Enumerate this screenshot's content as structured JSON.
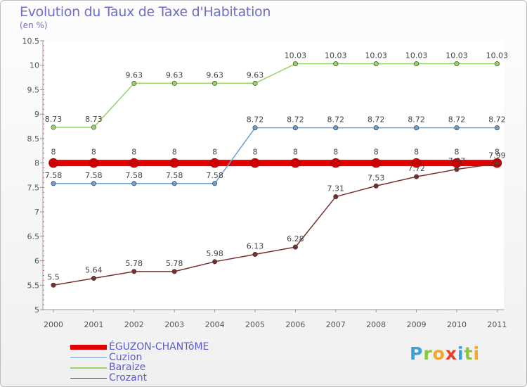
{
  "title": "Evolution du Taux de Taxe d'Habitation",
  "unit_label": "(en %)",
  "logo": {
    "letters": [
      "P",
      "r",
      "o",
      "x",
      "i",
      "t",
      "i"
    ],
    "colors": [
      "#3aa0e0",
      "#8cc63f",
      "#f5a623",
      "#e8402a",
      "#3aa0e0",
      "#8cc63f",
      "#f5a623"
    ]
  },
  "chart_data": {
    "type": "line",
    "x": [
      "2000",
      "2001",
      "2002",
      "2003",
      "2004",
      "2005",
      "2006",
      "2007",
      "2008",
      "2009",
      "2010",
      "2011"
    ],
    "ylim": [
      5,
      10.5
    ],
    "yticks": [
      "5",
      "5.5",
      "6",
      "6.5",
      "7",
      "7.5",
      "8",
      "8.5",
      "9",
      "9.5",
      "10",
      "10.5"
    ],
    "grid": false,
    "legend_position": "bottom-left",
    "series": [
      {
        "name": "ÉGUZON-CHANTôME",
        "color": "#e00000",
        "width": 9,
        "values": [
          8,
          8,
          8,
          8,
          8,
          8,
          8,
          8,
          8,
          8,
          8,
          8
        ],
        "labels": [
          "8",
          "8",
          "8",
          "8",
          "8",
          "8",
          "8",
          "8",
          "8",
          "8",
          "8",
          "8"
        ]
      },
      {
        "name": "Cuzion",
        "color": "#6f9fd0",
        "width": 1.5,
        "values": [
          7.58,
          7.58,
          7.58,
          7.58,
          7.58,
          8.72,
          8.72,
          8.72,
          8.72,
          8.72,
          8.72,
          8.72
        ],
        "labels": [
          "7.58",
          "7.58",
          "7.58",
          "7.58",
          "7.58",
          "8.72",
          "8.72",
          "8.72",
          "8.72",
          "8.72",
          "8.72",
          "8.72"
        ]
      },
      {
        "name": "Baraize",
        "color": "#9ad26a",
        "width": 1.5,
        "values": [
          8.73,
          8.73,
          9.63,
          9.63,
          9.63,
          9.63,
          10.03,
          10.03,
          10.03,
          10.03,
          10.03,
          10.03
        ],
        "labels": [
          "8.73",
          "8.73",
          "9.63",
          "9.63",
          "9.63",
          "9.63",
          "10.03",
          "10.03",
          "10.03",
          "10.03",
          "10.03",
          "10.03"
        ]
      },
      {
        "name": "Crozant",
        "color": "#7a2f2f",
        "width": 1.5,
        "values": [
          5.5,
          5.64,
          5.78,
          5.78,
          5.98,
          6.13,
          6.28,
          7.31,
          7.53,
          7.72,
          7.87,
          7.99
        ],
        "labels": [
          "5.5",
          "5.64",
          "5.78",
          "5.78",
          "5.98",
          "6.13",
          "6.28",
          "7.31",
          "7.53",
          "7.72",
          "7.87",
          "7.99"
        ]
      }
    ]
  }
}
